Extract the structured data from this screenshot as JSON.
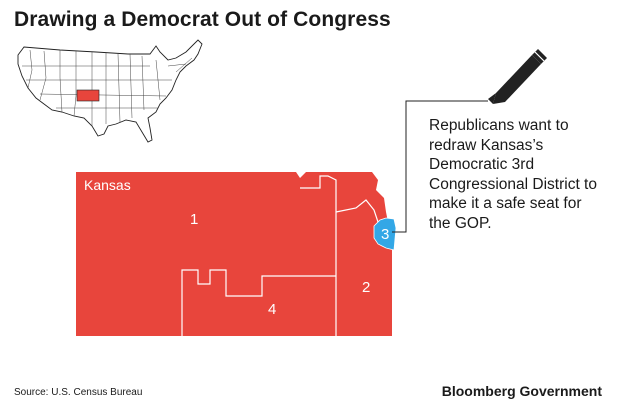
{
  "title": "Drawing a Democrat Out of Congress",
  "map": {
    "state_label": "Kansas",
    "districts": [
      {
        "label": "1"
      },
      {
        "label": "2"
      },
      {
        "label": "3"
      },
      {
        "label": "4"
      }
    ],
    "colors": {
      "kansas_fill": "#e8453c",
      "district3_fill": "#33a7e6",
      "inset_highlight": "#e8453c",
      "border_white": "#ffffff"
    }
  },
  "callout_text": "Republicans want to redraw Kansas’s Democratic 3rd Congressional District to make it a safe seat for the GOP.",
  "icon": "pencil-icon",
  "source": "Source: U.S. Census Bureau",
  "brand": "Bloomberg Government"
}
